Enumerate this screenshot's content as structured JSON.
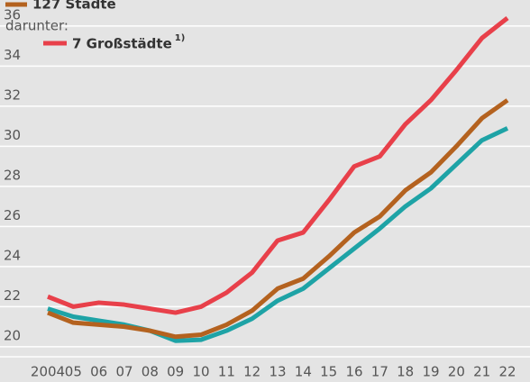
{
  "chart_data": {
    "type": "line",
    "categories": [
      "2004",
      "05",
      "06",
      "07",
      "08",
      "09",
      "10",
      "11",
      "12",
      "13",
      "14",
      "15",
      "16",
      "17",
      "18",
      "19",
      "20",
      "21",
      "22"
    ],
    "series": [
      {
        "color": "#1ea3a6",
        "values": [
          21.9,
          21.5,
          21.3,
          21.1,
          20.8,
          20.3,
          20.35,
          20.8,
          21.4,
          22.3,
          22.9,
          23.9,
          24.9,
          25.9,
          27.0,
          27.9,
          29.1,
          30.3,
          30.9
        ]
      },
      {
        "name": "127 Städte",
        "color": "#b4621f",
        "values": [
          21.7,
          21.2,
          21.1,
          21.0,
          20.8,
          20.5,
          20.6,
          21.1,
          21.8,
          22.9,
          23.4,
          24.5,
          25.7,
          26.5,
          27.8,
          28.7,
          30.0,
          31.4,
          32.3
        ]
      },
      {
        "name": "7 Großstädte",
        "color": "#e8404a",
        "values": [
          22.5,
          22.0,
          22.2,
          22.1,
          21.9,
          21.7,
          22.0,
          22.7,
          23.7,
          25.3,
          25.7,
          27.3,
          29.0,
          29.5,
          31.1,
          32.3,
          33.8,
          35.4,
          36.4
        ]
      }
    ],
    "legend_subheading": "darunter:",
    "footnote_marker": "1)",
    "ylim": [
      19.5,
      37.3
    ],
    "yticks": [
      20,
      22,
      24,
      26,
      28,
      30,
      32,
      34,
      36
    ],
    "grid": true
  }
}
